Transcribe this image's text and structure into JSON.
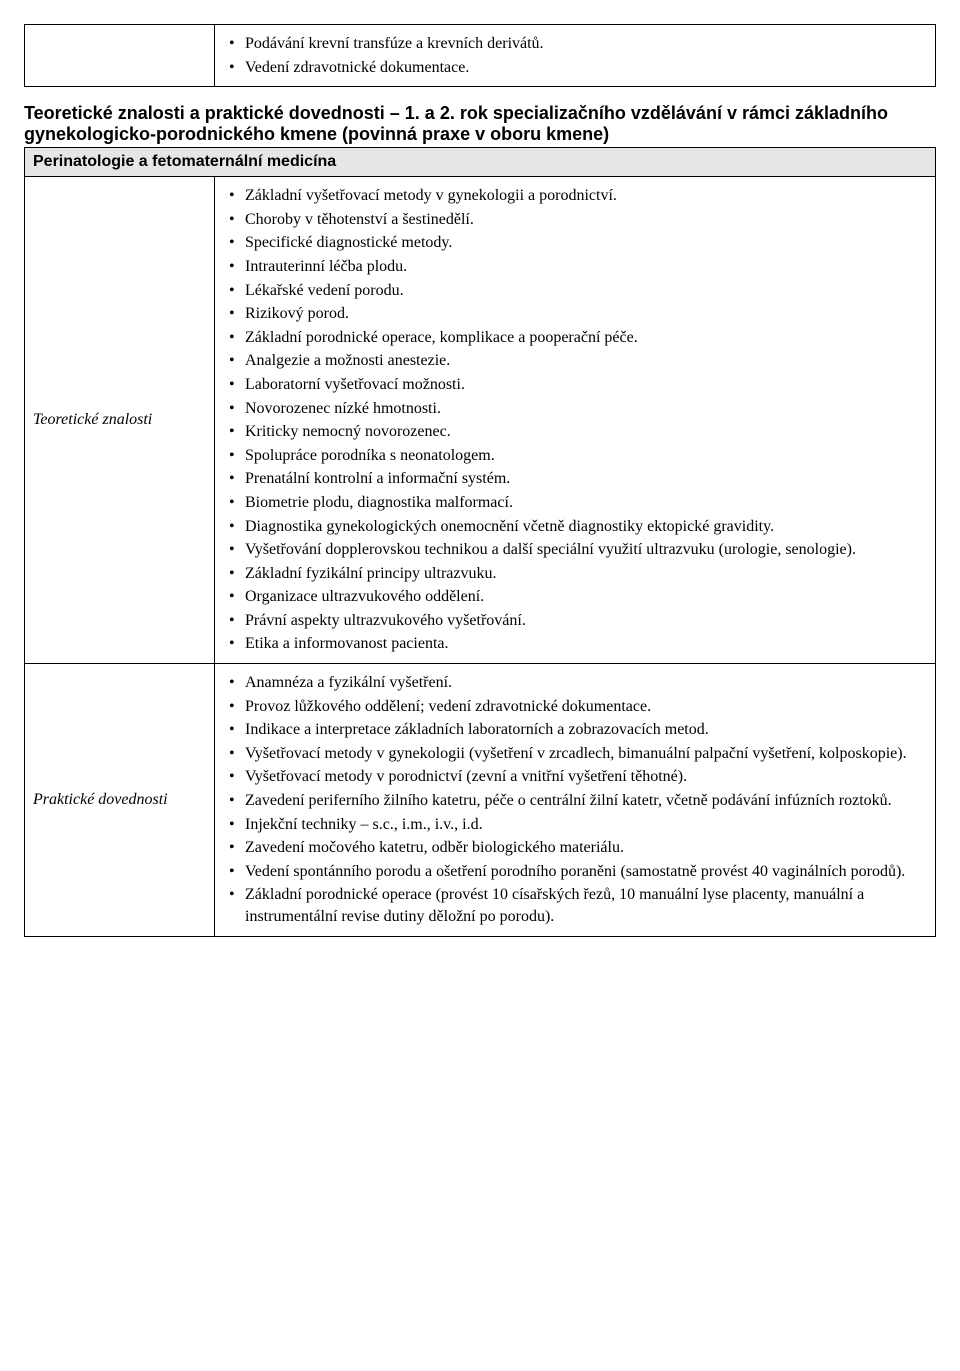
{
  "colors": {
    "background": "#ffffff",
    "text": "#000000",
    "border": "#000000",
    "header_bg": "#e6e6e6"
  },
  "top_table": {
    "left_label": "",
    "items": [
      "Podávání krevní transfúze a krevních derivátů.",
      "Vedení zdravotnické dokumentace."
    ]
  },
  "section_title": "Teoretické znalosti a praktické dovednosti – 1. a 2. rok specializačního vzdělávání v rámci základního gynekologicko-porodnického kmene (povinná praxe v oboru kmene)",
  "header_text": "Perinatologie a fetomaternální medicína",
  "row1": {
    "label": "Teoretické znalosti",
    "items": [
      "Základní vyšetřovací metody v gynekologii a porodnictví.",
      "Choroby v těhotenství a šestinedělí.",
      "Specifické diagnostické metody.",
      "Intrauterinní léčba plodu.",
      "Lékařské vedení porodu.",
      "Rizikový porod.",
      "Základní porodnické operace, komplikace a pooperační péče.",
      "Analgezie a možnosti anestezie.",
      "Laboratorní vyšetřovací možnosti.",
      "Novorozenec nízké hmotnosti.",
      "Kriticky nemocný novorozenec.",
      "Spolupráce porodníka s neonatologem.",
      "Prenatální kontrolní a informační systém.",
      "Biometrie plodu, diagnostika malformací.",
      "Diagnostika gynekologických onemocnění včetně diagnostiky ektopické gravidity.",
      "Vyšetřování dopplerovskou technikou a další speciální využití ultrazvuku (urologie, senologie).",
      "Základní fyzikální principy ultrazvuku.",
      "Organizace ultrazvukového oddělení.",
      "Právní aspekty ultrazvukového vyšetřování.",
      "Etika a informovanost pacienta."
    ]
  },
  "row2": {
    "label": "Praktické dovednosti",
    "items": [
      "Anamnéza a fyzikální vyšetření.",
      "Provoz lůžkového oddělení; vedení zdravotnické dokumentace.",
      "Indikace a interpretace základních laboratorních a zobrazovacích metod.",
      "Vyšetřovací metody v gynekologii (vyšetření v zrcadlech, bimanuální palpační vyšetření, kolposkopie).",
      "Vyšetřovací metody v porodnictví (zevní a vnitřní vyšetření těhotné).",
      "Zavedení periferního žilního katetru, péče o centrální žilní katetr, včetně podávání infúzních roztoků.",
      "Injekční techniky – s.c., i.m., i.v., i.d.",
      "Zavedení močového katetru, odběr biologického materiálu.",
      "Vedení spontánního porodu a ošetření porodního poraněni (samostatně provést 40 vaginálních porodů).",
      "Základní porodnické operace (provést 10 císařských řezů, 10 manuální lyse placenty, manuální a instrumentální revise dutiny děložní po porodu)."
    ]
  }
}
